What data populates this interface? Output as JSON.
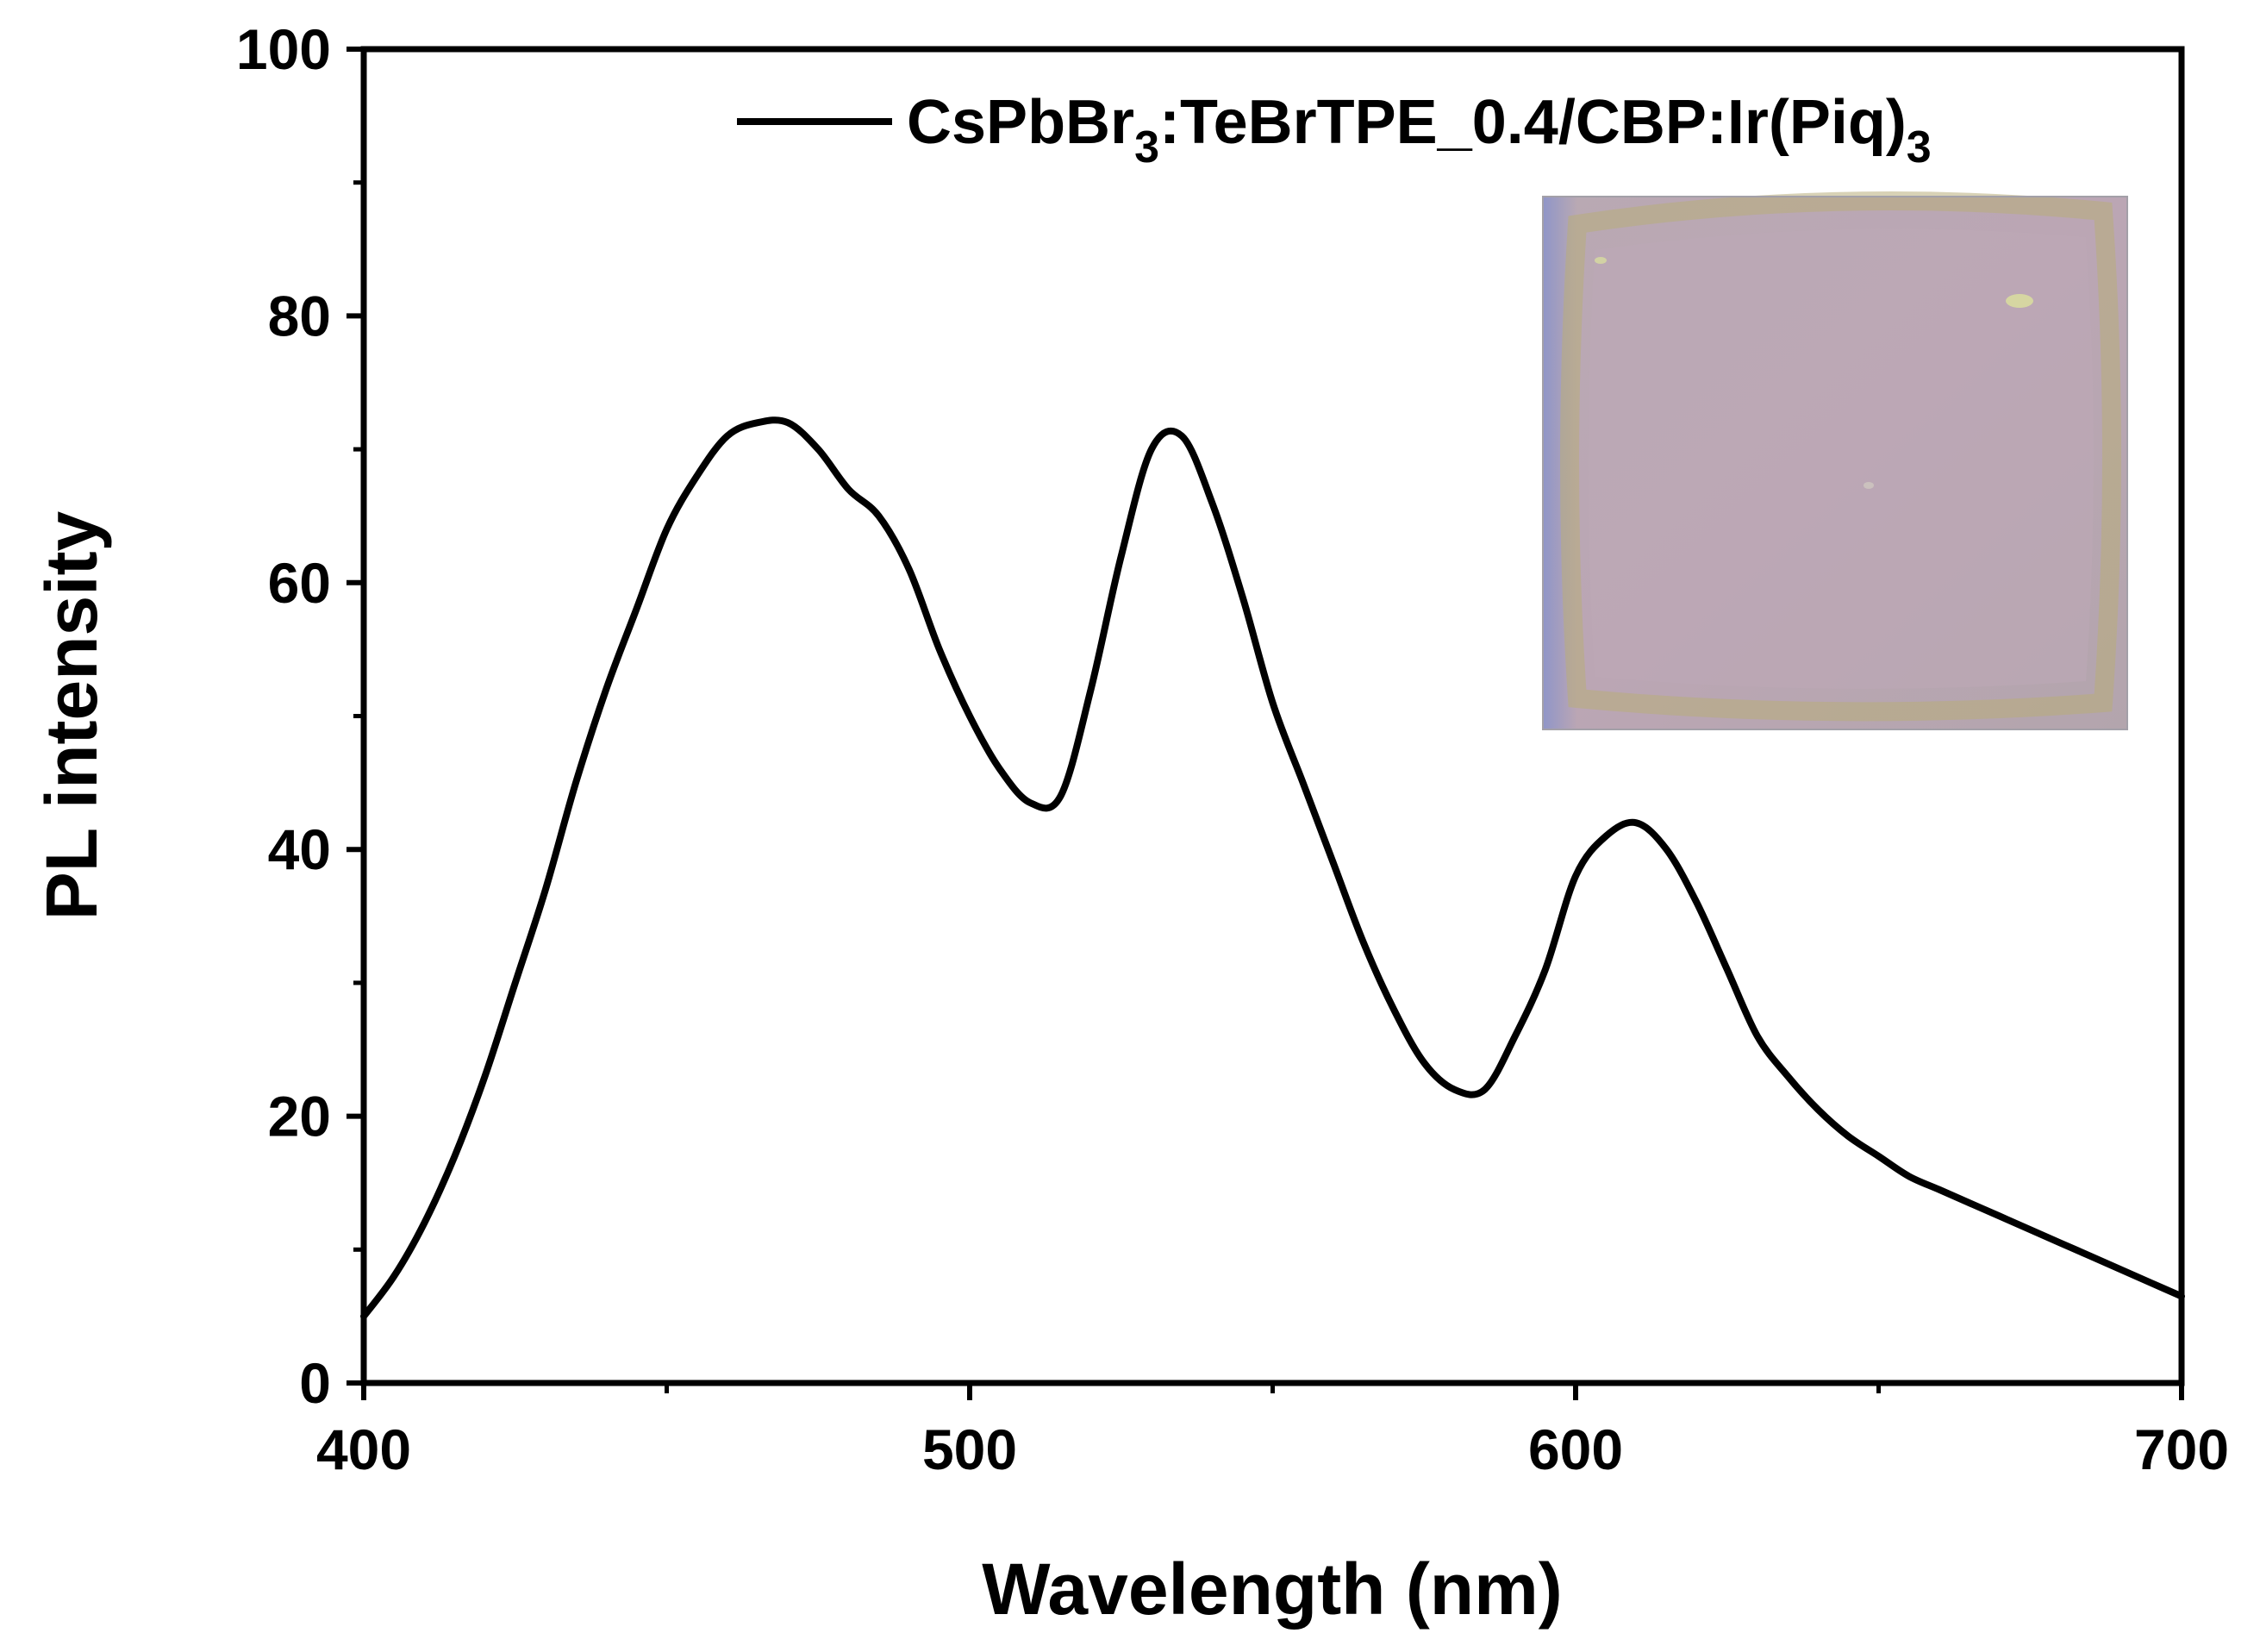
{
  "chart_data": {
    "type": "line",
    "xlabel": "Wavelength (nm)",
    "ylabel": "PL intensity",
    "xlim": [
      400,
      700
    ],
    "ylim": [
      0,
      100
    ],
    "x_ticks": [
      "400",
      "500",
      "600",
      "700"
    ],
    "y_ticks": [
      "0",
      "20",
      "40",
      "60",
      "80",
      "100"
    ],
    "grid": false,
    "legend_position": "top-right",
    "inset": "photo of emitting film",
    "series": [
      {
        "name": "CsPbBr3:TeBrTPE_0.4/CBP:Ir(Piq)3",
        "name_parts": {
          "base": "CsPbBr",
          "sub1": "3",
          "mid": ":TeBrTPE_0.4/CBP:Ir(Piq)",
          "sub2": "3"
        },
        "color": "#000000",
        "x": [
          400,
          405,
          410,
          415,
          420,
          425,
          430,
          435,
          440,
          445,
          450,
          455,
          460,
          465,
          470,
          475,
          480,
          485,
          490,
          495,
          500,
          505,
          510,
          515,
          520,
          525,
          530,
          535,
          540,
          545,
          550,
          555,
          560,
          565,
          570,
          575,
          580,
          585,
          590,
          595,
          600,
          605,
          610,
          615,
          620,
          625,
          630,
          635,
          640,
          645,
          650,
          655,
          660,
          665,
          670,
          675,
          680,
          685,
          690,
          695,
          700
        ],
        "y": [
          5,
          8,
          12,
          17,
          23,
          30,
          37,
          45,
          52,
          58,
          64,
          68,
          71,
          72,
          72,
          70,
          67,
          65,
          61,
          55,
          50,
          46,
          43.5,
          44,
          52,
          62,
          70,
          71,
          66,
          59,
          51,
          45,
          39,
          33,
          28,
          24,
          22,
          22,
          26,
          31,
          38,
          41,
          42,
          40,
          36,
          31,
          26,
          23,
          20.5,
          18.5,
          17,
          15.5,
          14.5,
          13.5,
          12.5,
          11.5,
          10.5,
          9.5,
          8.5,
          7.5,
          6.5
        ]
      }
    ]
  }
}
